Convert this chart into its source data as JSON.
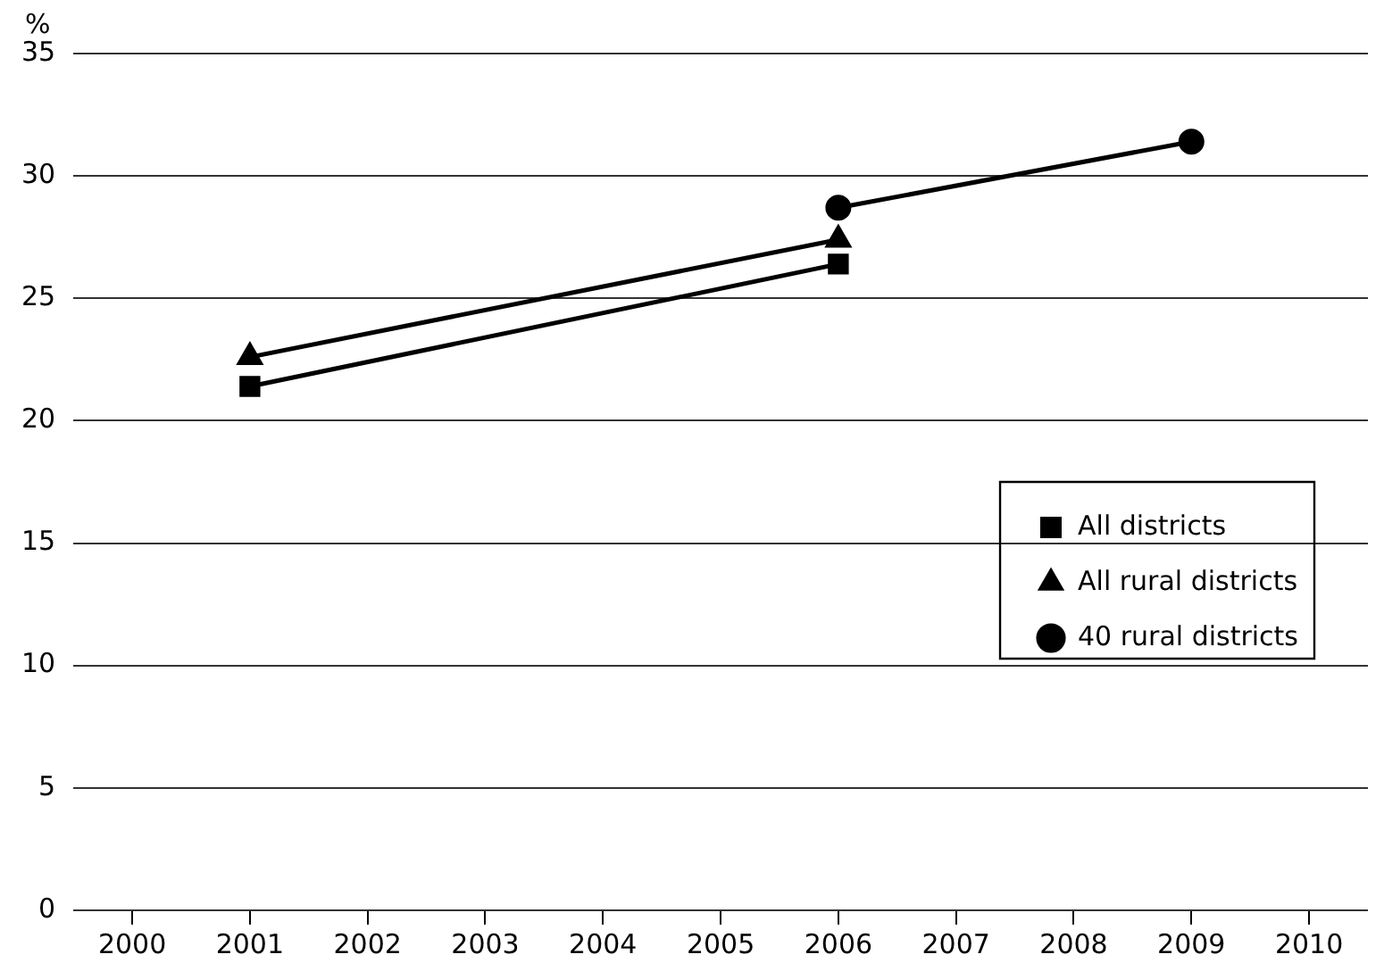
{
  "chart_data": {
    "type": "line",
    "ylabel": "%",
    "x": [
      2001,
      2006,
      2009
    ],
    "series": [
      {
        "name": "All districts",
        "color": "#000000",
        "marker": "square",
        "values": [
          21.4,
          26.4,
          null
        ]
      },
      {
        "name": "All rural districts",
        "color": "#000000",
        "marker": "triangle",
        "values": [
          22.6,
          27.4,
          null
        ]
      },
      {
        "name": "40 rural districts",
        "color": "#000000",
        "marker": "circle",
        "values": [
          null,
          28.7,
          31.4
        ]
      }
    ],
    "xlim": [
      1999.5,
      2010.5
    ],
    "xticks": [
      2000,
      2001,
      2002,
      2003,
      2004,
      2005,
      2006,
      2007,
      2008,
      2009,
      2010
    ],
    "ylim": [
      0,
      35
    ],
    "yticks": [
      0,
      5,
      10,
      15,
      20,
      25,
      30,
      35
    ],
    "grid": "y",
    "legend": "right",
    "line_style": "solid"
  }
}
